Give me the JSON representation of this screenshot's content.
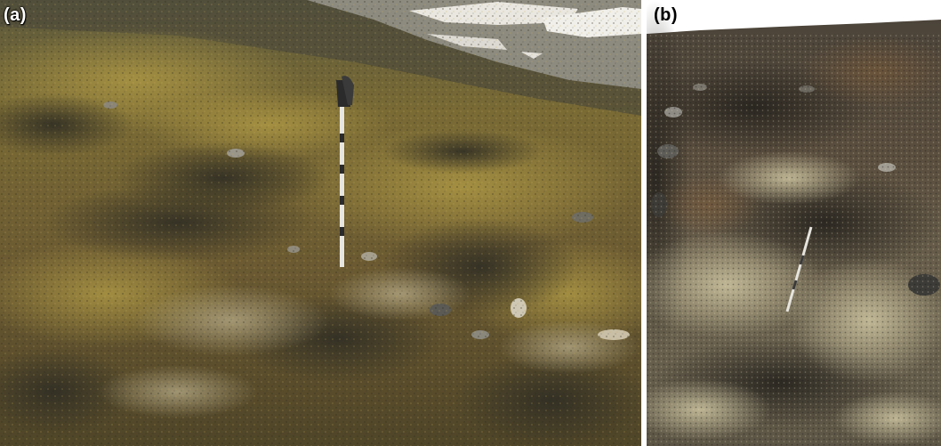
{
  "figure": {
    "panels": [
      {
        "id": "a",
        "label": "(a)"
      },
      {
        "id": "b",
        "label": "(b)"
      }
    ]
  }
}
